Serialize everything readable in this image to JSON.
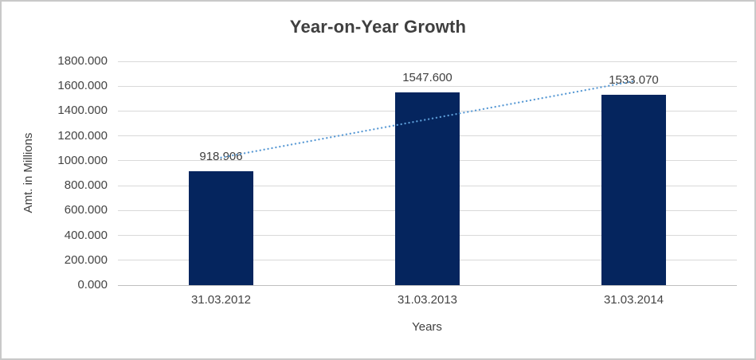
{
  "chart_data": {
    "type": "bar",
    "title": "Year-on-Year Growth",
    "xlabel": "Years",
    "ylabel": "Amt. in Millions",
    "categories": [
      "31.03.2012",
      "31.03.2013",
      "31.03.2014"
    ],
    "values": [
      918.906,
      1547.6,
      1533.07
    ],
    "data_labels": [
      "918.906",
      "1547.600",
      "1533.070"
    ],
    "ylim": [
      0,
      1800
    ],
    "ytick_step": 200,
    "ytick_decimals": 3,
    "grid": true,
    "legend": "none",
    "trendline": {
      "type": "linear",
      "style": "dotted"
    },
    "colors": {
      "bar": "#05255E",
      "trendline": "#5B9BD5",
      "gridline": "#D9D9D9",
      "axis_line": "#BFBFBF",
      "title_text": "#3F3F3F",
      "tick_text": "#444444",
      "label_text": "#404040",
      "background": "#FFFFFF",
      "border": "#C9C9C9"
    }
  }
}
